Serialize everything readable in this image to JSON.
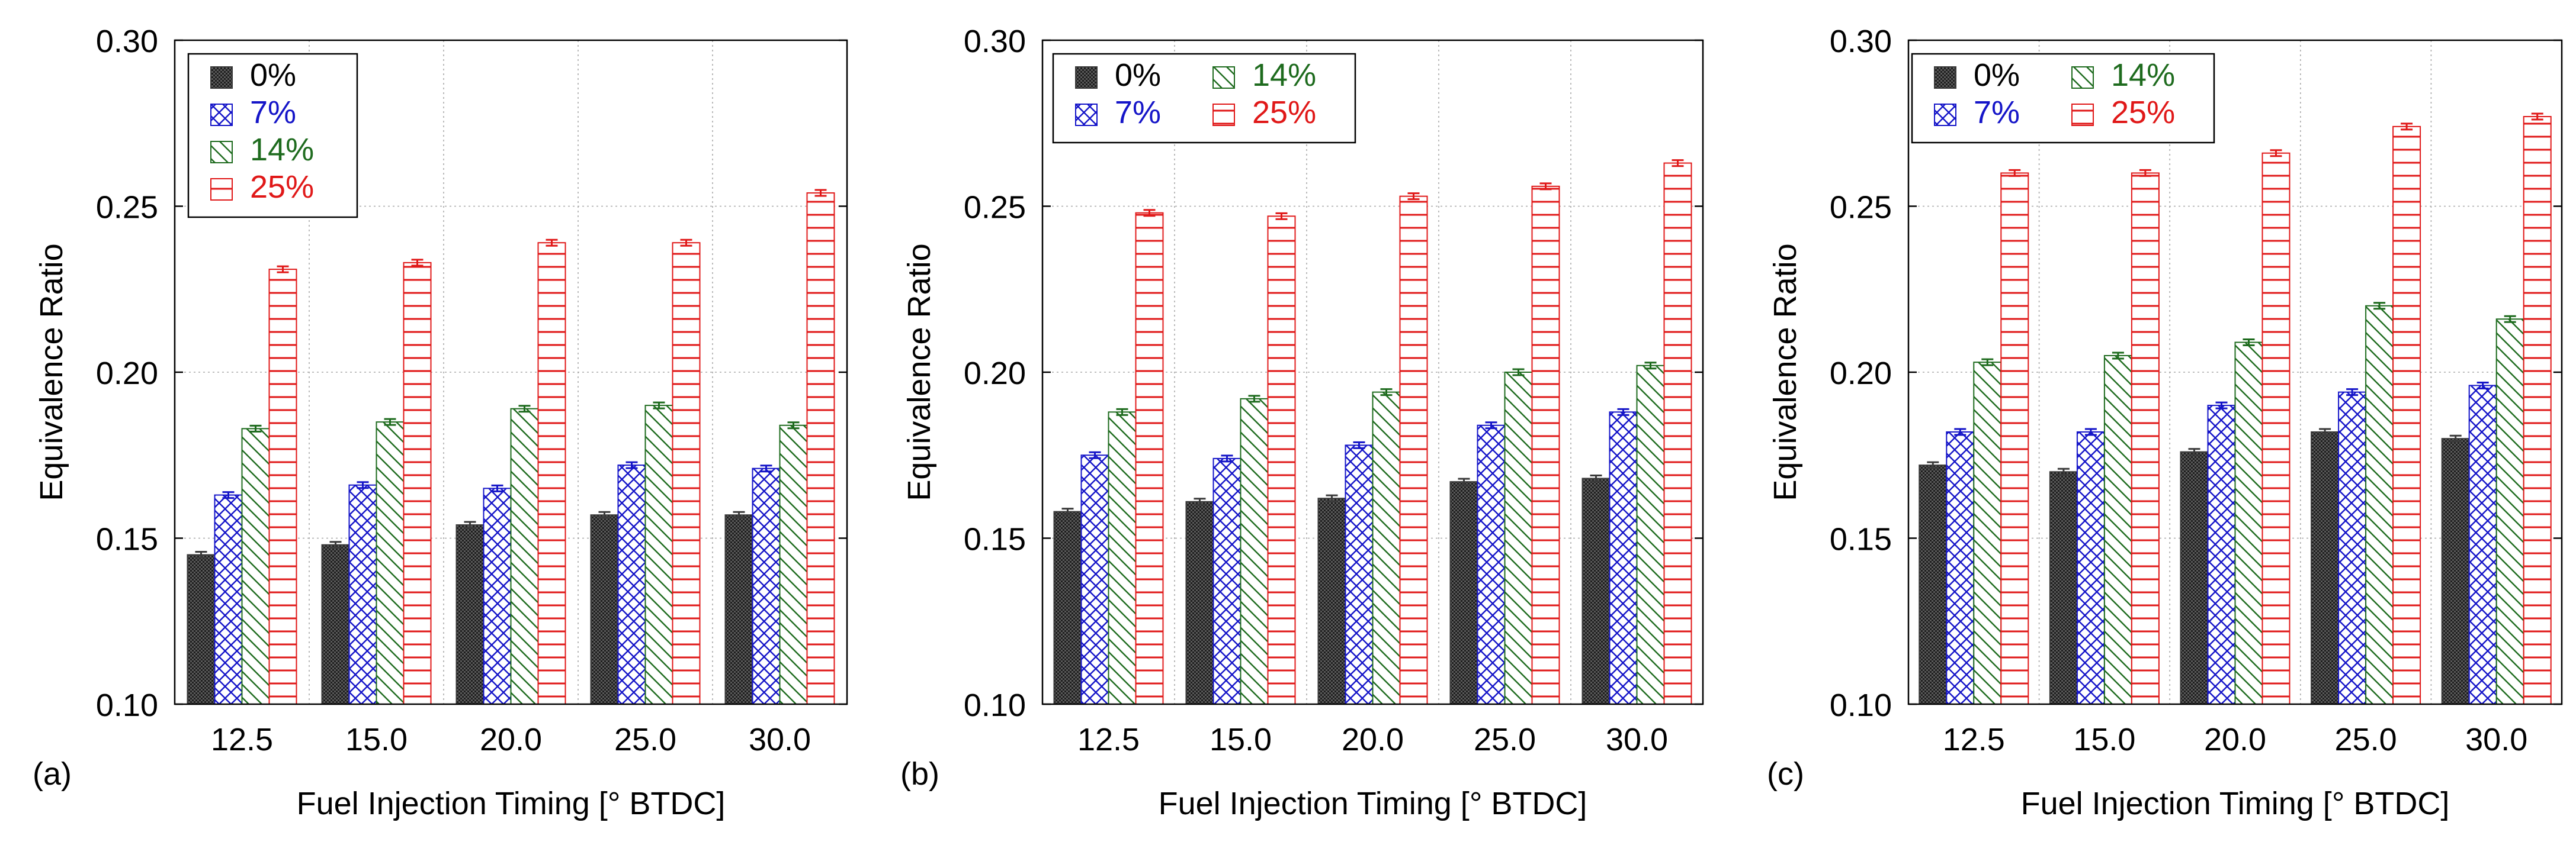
{
  "colors": {
    "s0": "#3a3a3a",
    "s7": "#1515c8",
    "s14": "#1e6b1e",
    "s25": "#e01818",
    "grid": "#a9a9a9",
    "axis": "#000000"
  },
  "chart_data": [
    {
      "type": "bar",
      "panel_label": "(a)",
      "xlabel": "Fuel Injection Timing [° BTDC]",
      "ylabel": "Equivalence Ratio",
      "ylim": [
        0.1,
        0.3
      ],
      "yticks": [
        "0.10",
        "0.15",
        "0.20",
        "0.25",
        "0.30"
      ],
      "categories": [
        "12.5",
        "15.0",
        "20.0",
        "25.0",
        "30.0"
      ],
      "grid": true,
      "legend": {
        "placement": "top-left",
        "columns": 1
      },
      "series": [
        {
          "name": "0%",
          "values": [
            0.145,
            0.148,
            0.154,
            0.157,
            0.157
          ]
        },
        {
          "name": "7%",
          "values": [
            0.163,
            0.166,
            0.165,
            0.172,
            0.171
          ]
        },
        {
          "name": "14%",
          "values": [
            0.183,
            0.185,
            0.189,
            0.19,
            0.184
          ]
        },
        {
          "name": "25%",
          "values": [
            0.231,
            0.233,
            0.239,
            0.239,
            0.254
          ]
        }
      ]
    },
    {
      "type": "bar",
      "panel_label": "(b)",
      "xlabel": "Fuel Injection Timing [° BTDC]",
      "ylabel": "Equivalence Ratio",
      "ylim": [
        0.1,
        0.3
      ],
      "yticks": [
        "0.10",
        "0.15",
        "0.20",
        "0.25",
        "0.30"
      ],
      "categories": [
        "12.5",
        "15.0",
        "20.0",
        "25.0",
        "30.0"
      ],
      "grid": true,
      "legend": {
        "placement": "top-left",
        "columns": 2
      },
      "series": [
        {
          "name": "0%",
          "values": [
            0.158,
            0.161,
            0.162,
            0.167,
            0.168
          ]
        },
        {
          "name": "7%",
          "values": [
            0.175,
            0.174,
            0.178,
            0.184,
            0.188
          ]
        },
        {
          "name": "14%",
          "values": [
            0.188,
            0.192,
            0.194,
            0.2,
            0.202
          ]
        },
        {
          "name": "25%",
          "values": [
            0.248,
            0.247,
            0.253,
            0.256,
            0.263
          ]
        }
      ]
    },
    {
      "type": "bar",
      "panel_label": "(c)",
      "xlabel": "Fuel Injection Timing [° BTDC]",
      "ylabel": "Equivalence Ratio",
      "ylim": [
        0.1,
        0.3
      ],
      "yticks": [
        "0.10",
        "0.15",
        "0.20",
        "0.25",
        "0.30"
      ],
      "categories": [
        "12.5",
        "15.0",
        "20.0",
        "25.0",
        "30.0"
      ],
      "grid": true,
      "legend": {
        "placement": "top-left",
        "columns": 2
      },
      "series": [
        {
          "name": "0%",
          "values": [
            0.172,
            0.17,
            0.176,
            0.182,
            0.18
          ]
        },
        {
          "name": "7%",
          "values": [
            0.182,
            0.182,
            0.19,
            0.194,
            0.196
          ]
        },
        {
          "name": "14%",
          "values": [
            0.203,
            0.205,
            0.209,
            0.22,
            0.216
          ]
        },
        {
          "name": "25%",
          "values": [
            0.26,
            0.26,
            0.266,
            0.274,
            0.277
          ]
        }
      ]
    }
  ]
}
